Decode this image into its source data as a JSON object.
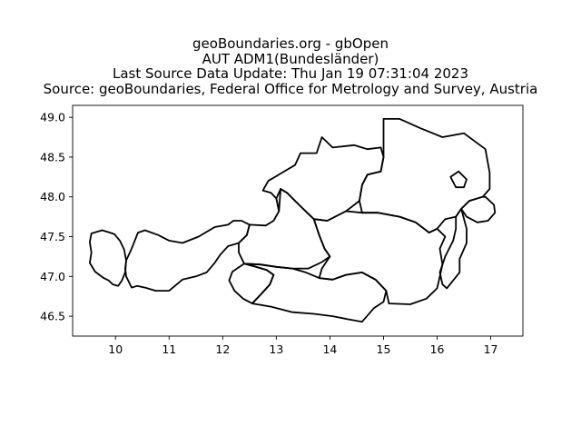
{
  "header": {
    "title_lines": [
      "geoBoundaries.org - gbOpen",
      "AUT ADM1(Bundesländer)",
      "Last Source Data Update: Thu Jan 19 07:31:04 2023",
      "Source: geoBoundaries, Federal Office for Metrology and Survey, Austria"
    ]
  },
  "chart_data": {
    "type": "map",
    "xlim": [
      9.2,
      17.6
    ],
    "ylim": [
      46.25,
      49.15
    ],
    "x_ticks": [
      10,
      11,
      12,
      13,
      14,
      15,
      16,
      17
    ],
    "y_ticks": [
      46.5,
      47.0,
      47.5,
      48.0,
      48.5,
      49.0
    ],
    "x_tick_labels": [
      "10",
      "11",
      "12",
      "13",
      "14",
      "15",
      "16",
      "17"
    ],
    "y_tick_labels": [
      "46.5",
      "47.0",
      "47.5",
      "48.0",
      "48.5",
      "49.0"
    ],
    "grid": false,
    "line_color": "#000000",
    "regions": [
      {
        "outline": [
          [
            9.55,
            47.54
          ],
          [
            9.75,
            47.58
          ],
          [
            9.9,
            47.55
          ],
          [
            9.98,
            47.53
          ],
          [
            10.08,
            47.45
          ],
          [
            10.16,
            47.34
          ],
          [
            10.2,
            47.2
          ],
          [
            10.18,
            47.05
          ],
          [
            10.12,
            46.95
          ],
          [
            10.05,
            46.88
          ],
          [
            9.95,
            46.9
          ],
          [
            9.87,
            46.95
          ],
          [
            9.78,
            46.98
          ],
          [
            9.62,
            47.06
          ],
          [
            9.52,
            47.17
          ],
          [
            9.55,
            47.3
          ],
          [
            9.52,
            47.43
          ],
          [
            9.55,
            47.54
          ]
        ]
      },
      {
        "outline": [
          [
            10.2,
            47.2
          ],
          [
            10.3,
            47.35
          ],
          [
            10.42,
            47.55
          ],
          [
            10.55,
            47.58
          ],
          [
            10.8,
            47.52
          ],
          [
            11.0,
            47.45
          ],
          [
            11.25,
            47.42
          ],
          [
            11.55,
            47.5
          ],
          [
            11.85,
            47.62
          ],
          [
            12.1,
            47.65
          ],
          [
            12.2,
            47.7
          ],
          [
            12.35,
            47.7
          ],
          [
            12.5,
            47.65
          ],
          [
            12.45,
            47.52
          ],
          [
            12.3,
            47.42
          ],
          [
            12.1,
            47.38
          ],
          [
            11.95,
            47.27
          ],
          [
            11.85,
            47.17
          ],
          [
            11.7,
            47.05
          ],
          [
            11.5,
            47.0
          ],
          [
            11.25,
            46.96
          ],
          [
            11.0,
            46.82
          ],
          [
            10.75,
            46.82
          ],
          [
            10.55,
            46.86
          ],
          [
            10.4,
            46.88
          ],
          [
            10.3,
            46.86
          ],
          [
            10.2,
            47.0
          ],
          [
            10.18,
            47.1
          ],
          [
            10.2,
            47.2
          ]
        ]
      },
      {
        "outline": [
          [
            12.18,
            47.06
          ],
          [
            12.4,
            47.16
          ],
          [
            12.62,
            47.12
          ],
          [
            12.82,
            47.08
          ],
          [
            12.95,
            47.02
          ],
          [
            12.88,
            46.9
          ],
          [
            12.72,
            46.78
          ],
          [
            12.55,
            46.66
          ],
          [
            12.38,
            46.72
          ],
          [
            12.22,
            46.82
          ],
          [
            12.12,
            46.95
          ],
          [
            12.18,
            47.06
          ]
        ]
      },
      {
        "outline": [
          [
            12.4,
            47.16
          ],
          [
            12.7,
            47.15
          ],
          [
            13.0,
            47.12
          ],
          [
            13.3,
            47.1
          ],
          [
            13.55,
            47.05
          ],
          [
            13.8,
            46.98
          ],
          [
            14.05,
            46.96
          ],
          [
            14.3,
            47.02
          ],
          [
            14.6,
            47.05
          ],
          [
            14.85,
            46.96
          ],
          [
            15.05,
            46.82
          ],
          [
            15.0,
            46.68
          ],
          [
            14.82,
            46.6
          ],
          [
            14.6,
            46.43
          ],
          [
            14.35,
            46.46
          ],
          [
            14.05,
            46.5
          ],
          [
            13.7,
            46.53
          ],
          [
            13.3,
            46.55
          ],
          [
            12.9,
            46.62
          ],
          [
            12.55,
            46.66
          ],
          [
            12.72,
            46.78
          ],
          [
            12.88,
            46.9
          ],
          [
            12.95,
            47.02
          ],
          [
            12.82,
            47.08
          ],
          [
            12.62,
            47.12
          ],
          [
            12.4,
            47.16
          ]
        ]
      },
      {
        "outline": [
          [
            12.5,
            47.65
          ],
          [
            12.8,
            47.64
          ],
          [
            12.95,
            47.7
          ],
          [
            13.05,
            47.82
          ],
          [
            13.0,
            47.98
          ],
          [
            13.08,
            48.1
          ],
          [
            13.2,
            48.05
          ],
          [
            13.35,
            47.95
          ],
          [
            13.5,
            47.85
          ],
          [
            13.7,
            47.72
          ],
          [
            13.8,
            47.52
          ],
          [
            13.9,
            47.35
          ],
          [
            14.0,
            47.25
          ],
          [
            13.85,
            47.18
          ],
          [
            13.6,
            47.1
          ],
          [
            13.3,
            47.1
          ],
          [
            13.0,
            47.12
          ],
          [
            12.7,
            47.15
          ],
          [
            12.4,
            47.16
          ],
          [
            12.3,
            47.3
          ],
          [
            12.3,
            47.42
          ],
          [
            12.45,
            47.52
          ],
          [
            12.5,
            47.65
          ]
        ]
      },
      {
        "outline": [
          [
            13.05,
            47.82
          ],
          [
            13.0,
            47.98
          ],
          [
            12.9,
            48.05
          ],
          [
            12.75,
            48.08
          ],
          [
            12.85,
            48.2
          ],
          [
            13.1,
            48.3
          ],
          [
            13.35,
            48.4
          ],
          [
            13.45,
            48.55
          ],
          [
            13.75,
            48.55
          ],
          [
            13.85,
            48.75
          ],
          [
            14.05,
            48.62
          ],
          [
            14.45,
            48.65
          ],
          [
            14.7,
            48.6
          ],
          [
            14.95,
            48.62
          ],
          [
            15.0,
            48.5
          ],
          [
            14.95,
            48.32
          ],
          [
            14.7,
            48.28
          ],
          [
            14.6,
            48.15
          ],
          [
            14.55,
            47.95
          ],
          [
            14.3,
            47.82
          ],
          [
            13.95,
            47.7
          ],
          [
            13.7,
            47.72
          ],
          [
            13.5,
            47.85
          ],
          [
            13.35,
            47.95
          ],
          [
            13.2,
            48.05
          ],
          [
            13.08,
            48.1
          ],
          [
            13.05,
            47.82
          ]
        ]
      },
      {
        "outline": [
          [
            15.0,
            48.5
          ],
          [
            15.0,
            48.98
          ],
          [
            15.3,
            48.98
          ],
          [
            15.7,
            48.86
          ],
          [
            16.1,
            48.75
          ],
          [
            16.5,
            48.8
          ],
          [
            16.9,
            48.6
          ],
          [
            16.98,
            48.3
          ],
          [
            16.98,
            48.1
          ],
          [
            16.85,
            48.0
          ],
          [
            16.6,
            47.95
          ],
          [
            16.45,
            47.85
          ],
          [
            16.35,
            47.75
          ],
          [
            16.15,
            47.72
          ],
          [
            16.0,
            47.6
          ],
          [
            15.85,
            47.55
          ],
          [
            15.6,
            47.68
          ],
          [
            15.3,
            47.75
          ],
          [
            14.9,
            47.8
          ],
          [
            14.6,
            47.8
          ],
          [
            14.55,
            47.95
          ],
          [
            14.6,
            48.15
          ],
          [
            14.7,
            48.28
          ],
          [
            14.95,
            48.32
          ],
          [
            15.0,
            48.5
          ]
        ]
      },
      {
        "outline": [
          [
            16.25,
            48.25
          ],
          [
            16.4,
            48.32
          ],
          [
            16.55,
            48.22
          ],
          [
            16.5,
            48.12
          ],
          [
            16.35,
            48.12
          ],
          [
            16.25,
            48.25
          ]
        ]
      },
      {
        "outline": [
          [
            16.9,
            48.0
          ],
          [
            17.06,
            47.9
          ],
          [
            17.08,
            47.8
          ],
          [
            16.95,
            47.7
          ],
          [
            16.75,
            47.68
          ],
          [
            16.55,
            47.75
          ],
          [
            16.45,
            47.85
          ],
          [
            16.55,
            47.6
          ],
          [
            16.55,
            47.42
          ],
          [
            16.42,
            47.22
          ],
          [
            16.42,
            47.05
          ],
          [
            16.3,
            46.95
          ],
          [
            16.18,
            46.85
          ],
          [
            16.1,
            46.9
          ],
          [
            16.05,
            47.05
          ],
          [
            16.15,
            47.25
          ],
          [
            16.3,
            47.45
          ],
          [
            16.35,
            47.6
          ],
          [
            16.35,
            47.75
          ],
          [
            16.45,
            47.85
          ],
          [
            16.6,
            47.95
          ],
          [
            16.85,
            48.0
          ],
          [
            16.9,
            48.0
          ]
        ]
      },
      {
        "outline": [
          [
            14.0,
            47.25
          ],
          [
            13.9,
            47.35
          ],
          [
            13.8,
            47.52
          ],
          [
            13.7,
            47.72
          ],
          [
            13.95,
            47.7
          ],
          [
            14.3,
            47.82
          ],
          [
            14.6,
            47.8
          ],
          [
            14.9,
            47.8
          ],
          [
            15.3,
            47.75
          ],
          [
            15.6,
            47.68
          ],
          [
            15.85,
            47.55
          ],
          [
            16.0,
            47.6
          ],
          [
            16.15,
            47.5
          ],
          [
            16.05,
            47.35
          ],
          [
            16.1,
            47.15
          ],
          [
            16.05,
            47.0
          ],
          [
            16.0,
            46.85
          ],
          [
            15.8,
            46.72
          ],
          [
            15.5,
            46.65
          ],
          [
            15.1,
            46.66
          ],
          [
            15.05,
            46.82
          ],
          [
            14.85,
            46.96
          ],
          [
            14.6,
            47.05
          ],
          [
            14.3,
            47.02
          ],
          [
            14.05,
            46.96
          ],
          [
            13.8,
            46.98
          ],
          [
            13.85,
            47.1
          ],
          [
            14.0,
            47.25
          ]
        ]
      }
    ]
  }
}
